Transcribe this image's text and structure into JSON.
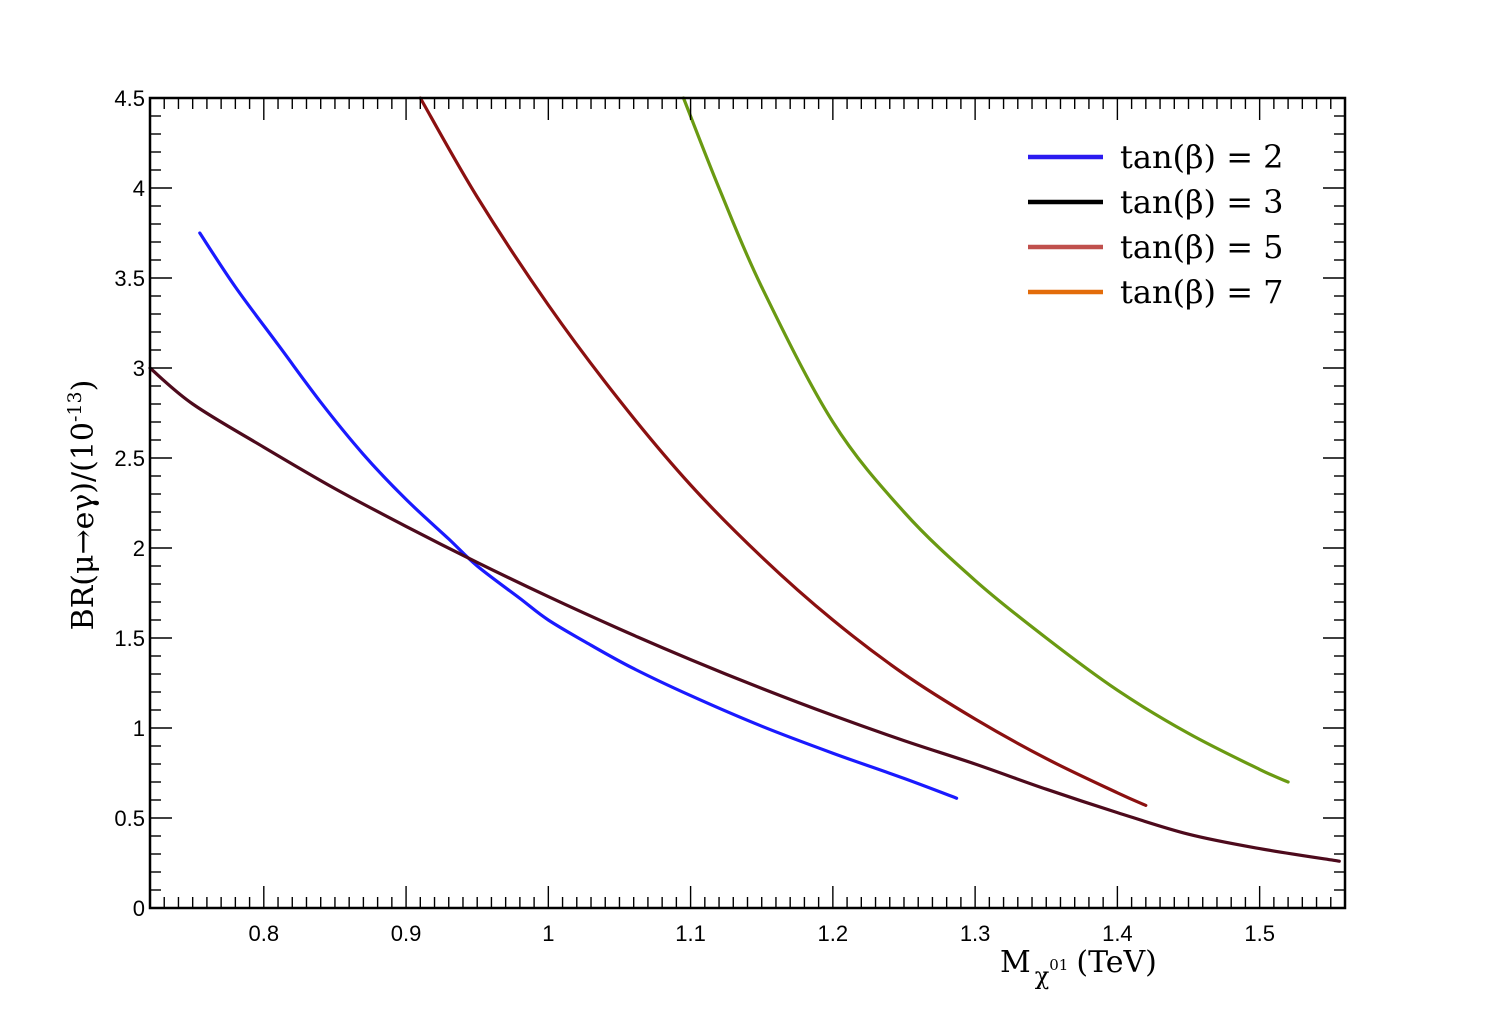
{
  "chart_data": {
    "type": "line",
    "title": "",
    "xlabel": {
      "main": "M",
      "sub": "χ",
      "sup": "01",
      "unit": "(TeV)"
    },
    "ylabel": {
      "main": "BR(μ→eγ)/(10",
      "sup": "-13",
      "close": ")"
    },
    "xlim": [
      0.72,
      1.56
    ],
    "ylim": [
      0,
      4.5
    ],
    "xticks": [
      {
        "v": 0.8,
        "label": "0.8"
      },
      {
        "v": 0.9,
        "label": "0.9"
      },
      {
        "v": 1.0,
        "label": "1"
      },
      {
        "v": 1.1,
        "label": "1.1"
      },
      {
        "v": 1.2,
        "label": "1.2"
      },
      {
        "v": 1.3,
        "label": "1.3"
      },
      {
        "v": 1.4,
        "label": "1.4"
      },
      {
        "v": 1.5,
        "label": "1.5"
      }
    ],
    "yticks": [
      {
        "v": 0,
        "label": "0"
      },
      {
        "v": 0.5,
        "label": "0.5"
      },
      {
        "v": 1,
        "label": "1"
      },
      {
        "v": 1.5,
        "label": "1.5"
      },
      {
        "v": 2,
        "label": "2"
      },
      {
        "v": 2.5,
        "label": "2.5"
      },
      {
        "v": 3,
        "label": "3"
      },
      {
        "v": 3.5,
        "label": "3.5"
      },
      {
        "v": 4,
        "label": "4"
      },
      {
        "v": 4.5,
        "label": "4.5"
      }
    ],
    "grid": false,
    "legend_position": "top-right",
    "series": [
      {
        "name": "tan(β) = 2",
        "legend_color": "#2b1bf0",
        "color": "#1a1aff",
        "x": [
          0.755,
          0.78,
          0.81,
          0.84,
          0.87,
          0.9,
          0.93,
          0.95,
          0.98,
          1.0,
          1.03,
          1.06,
          1.1,
          1.15,
          1.2,
          1.25,
          1.287
        ],
        "y": [
          3.75,
          3.45,
          3.13,
          2.81,
          2.52,
          2.27,
          2.05,
          1.9,
          1.72,
          1.6,
          1.46,
          1.33,
          1.18,
          1.01,
          0.86,
          0.72,
          0.61
        ]
      },
      {
        "name": "tan(β) = 3",
        "legend_color": "#000000",
        "color": "#4d0a1c",
        "x": [
          0.72,
          0.75,
          0.8,
          0.85,
          0.9,
          0.95,
          1.0,
          1.05,
          1.1,
          1.15,
          1.2,
          1.25,
          1.3,
          1.35,
          1.4,
          1.45,
          1.5,
          1.556
        ],
        "y": [
          3.0,
          2.8,
          2.56,
          2.33,
          2.12,
          1.92,
          1.73,
          1.55,
          1.38,
          1.22,
          1.07,
          0.93,
          0.8,
          0.66,
          0.53,
          0.41,
          0.33,
          0.26
        ]
      },
      {
        "name": "tan(β) = 5",
        "legend_color": "#c0504d",
        "color": "#8b1010",
        "x": [
          0.91,
          0.95,
          1.0,
          1.05,
          1.1,
          1.15,
          1.2,
          1.25,
          1.3,
          1.35,
          1.4,
          1.42
        ],
        "y": [
          4.5,
          3.95,
          3.35,
          2.82,
          2.35,
          1.95,
          1.6,
          1.3,
          1.05,
          0.83,
          0.64,
          0.57
        ]
      },
      {
        "name": "tan(β) = 7",
        "legend_color": "#e36c0a",
        "color": "#6a9a12",
        "x": [
          1.095,
          1.12,
          1.15,
          1.2,
          1.25,
          1.3,
          1.35,
          1.4,
          1.45,
          1.5,
          1.52
        ],
        "y": [
          4.5,
          4.0,
          3.45,
          2.7,
          2.2,
          1.82,
          1.5,
          1.21,
          0.97,
          0.77,
          0.7
        ]
      }
    ]
  }
}
